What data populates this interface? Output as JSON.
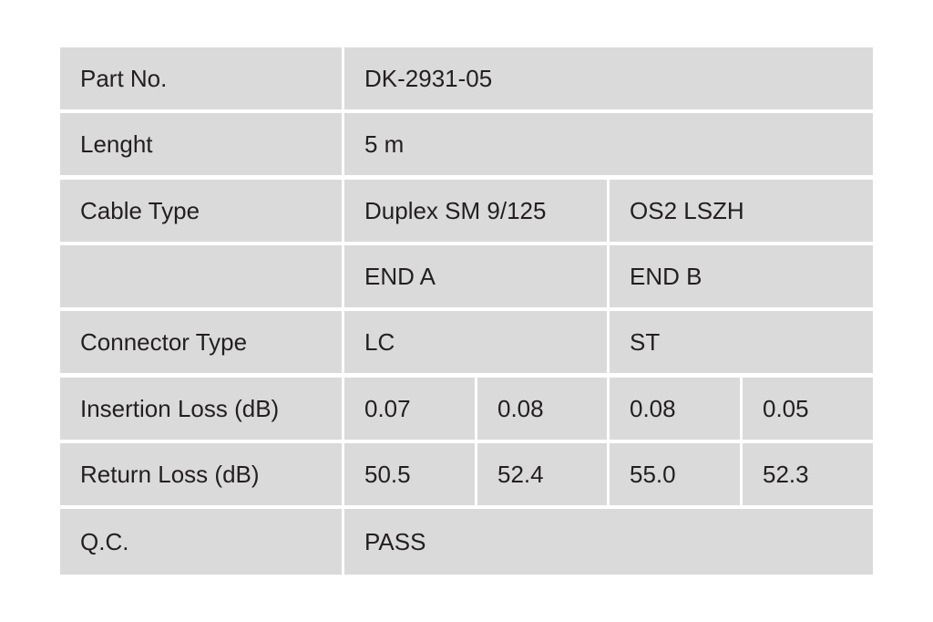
{
  "table": {
    "rows": [
      [
        "Part No.",
        "DK-2931-05"
      ],
      [
        "Lenght",
        "5 m"
      ],
      [
        "Cable Type",
        "Duplex SM 9/125",
        "OS2 LSZH"
      ],
      [
        "END A",
        "END B"
      ],
      [
        "Connector Type",
        "LC",
        "ST"
      ],
      [
        "Insertion Loss (dB)",
        "0.07",
        "0.08",
        "0.08",
        "0.05"
      ],
      [
        "Return Loss (dB)",
        "50.5",
        "52.4",
        "55.0",
        "52.3"
      ],
      [
        "Q.C.",
        "PASS"
      ]
    ]
  }
}
